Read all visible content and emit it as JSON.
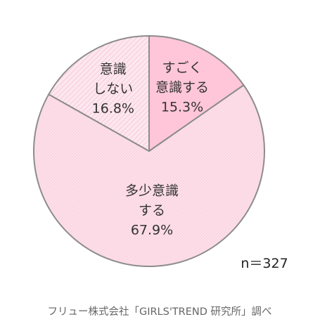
{
  "chart_data": {
    "type": "pie",
    "slices": [
      {
        "label_lines": [
          "すごく",
          "意識する"
        ],
        "value": 15.3,
        "value_text": "15.3%",
        "color": "#ffc6d9",
        "pattern": "none"
      },
      {
        "label_lines": [
          "多少意識",
          "する"
        ],
        "value": 67.9,
        "value_text": "67.9%",
        "color": "#fde0ea",
        "pattern": "dots"
      },
      {
        "label_lines": [
          "意識",
          "しない"
        ],
        "value": 16.8,
        "value_text": "16.8%",
        "color": "#fde7ef",
        "pattern": "diagonal-lines"
      }
    ],
    "start": "12 o'clock",
    "direction": "clockwise",
    "border_color": "#8c8c8c",
    "sample_size": "n＝327"
  },
  "source": "フリュー株式会社「GIRLS'TREND 研究所」調べ"
}
